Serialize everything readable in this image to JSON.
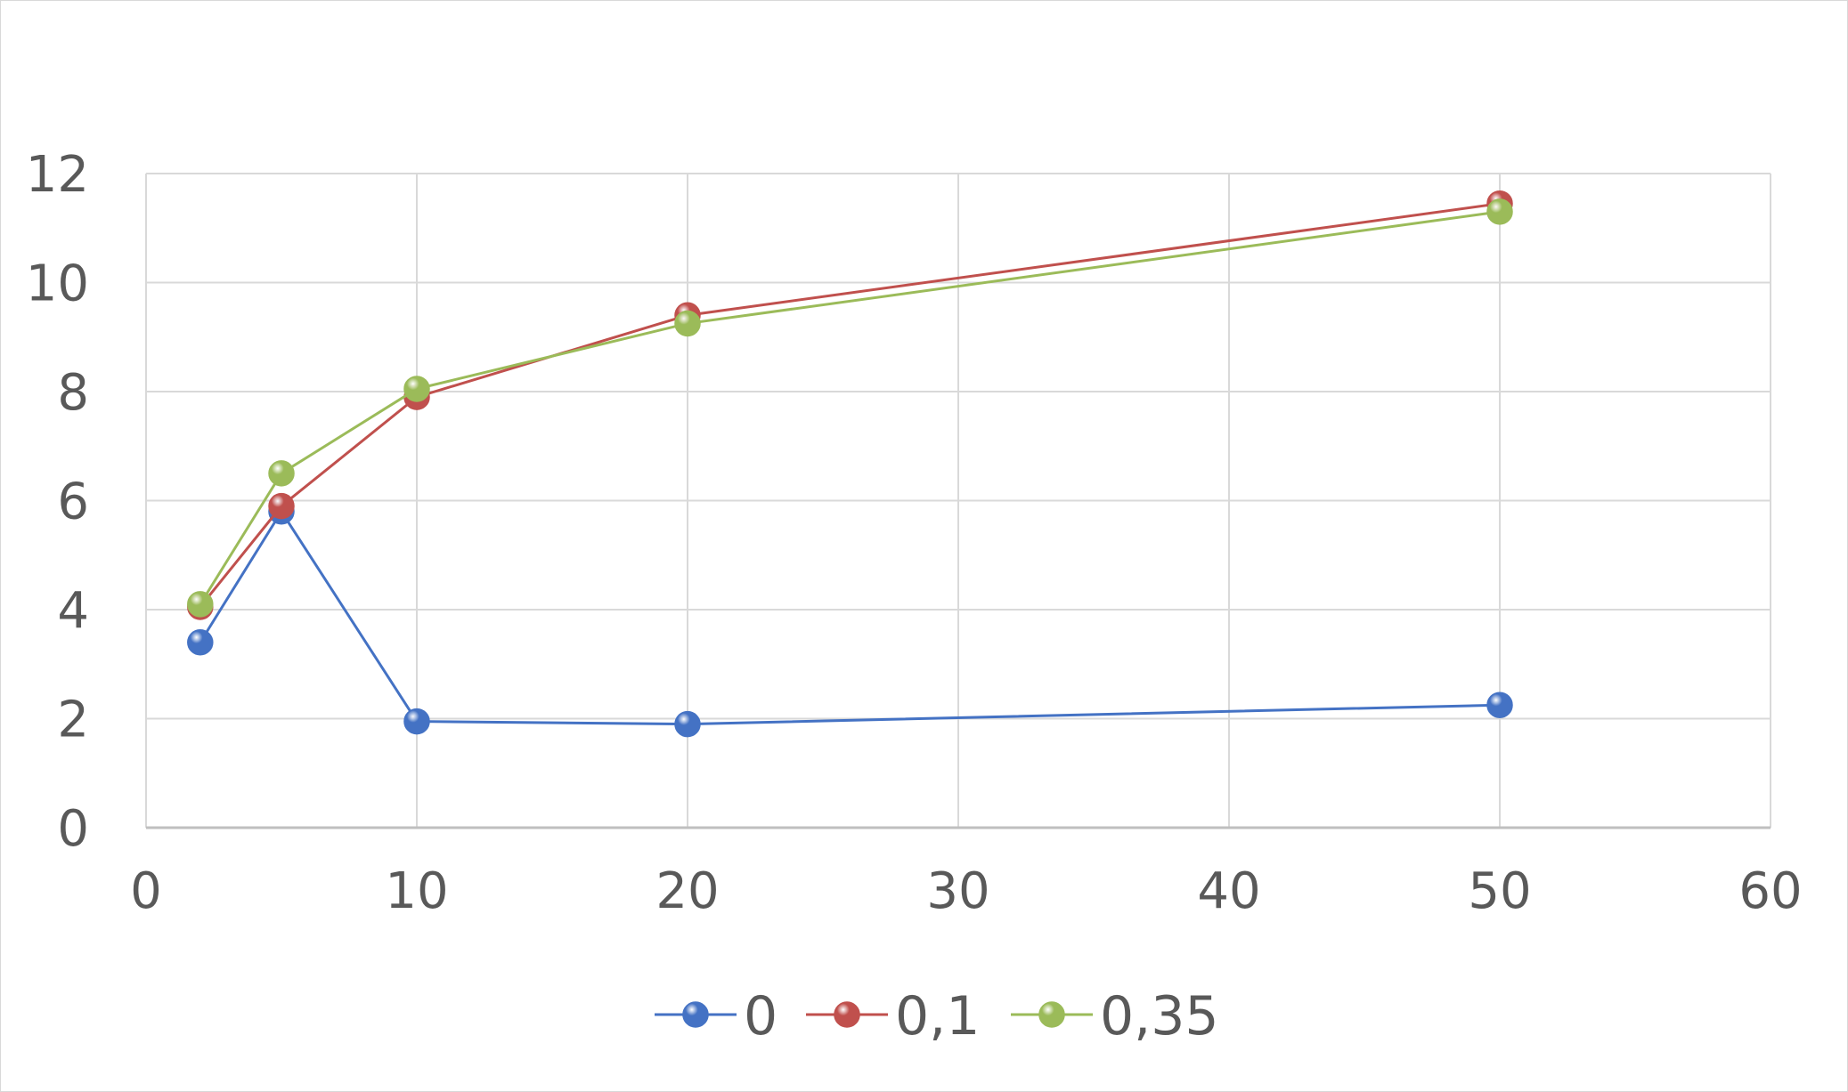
{
  "chart_data": {
    "type": "scatter",
    "title": "",
    "xlabel": "",
    "ylabel": "",
    "xlim": [
      0,
      60
    ],
    "ylim": [
      0,
      12
    ],
    "xticks": [
      0,
      10,
      20,
      30,
      40,
      50,
      60
    ],
    "yticks": [
      0,
      2,
      4,
      6,
      8,
      10,
      12
    ],
    "grid": true,
    "legend": "bottom",
    "series": [
      {
        "name": "0",
        "color": "#4472c4",
        "x": [
          2,
          5,
          10,
          20,
          50
        ],
        "y": [
          3.4,
          5.8,
          1.95,
          1.9,
          2.25
        ]
      },
      {
        "name": "0,1",
        "color": "#c0504d",
        "x": [
          2,
          5,
          10,
          20,
          50
        ],
        "y": [
          4.05,
          5.9,
          7.9,
          9.4,
          11.45
        ]
      },
      {
        "name": "0,35",
        "color": "#9bbb59",
        "x": [
          2,
          5,
          10,
          20,
          50
        ],
        "y": [
          4.1,
          6.5,
          8.05,
          9.25,
          11.3
        ]
      }
    ]
  }
}
